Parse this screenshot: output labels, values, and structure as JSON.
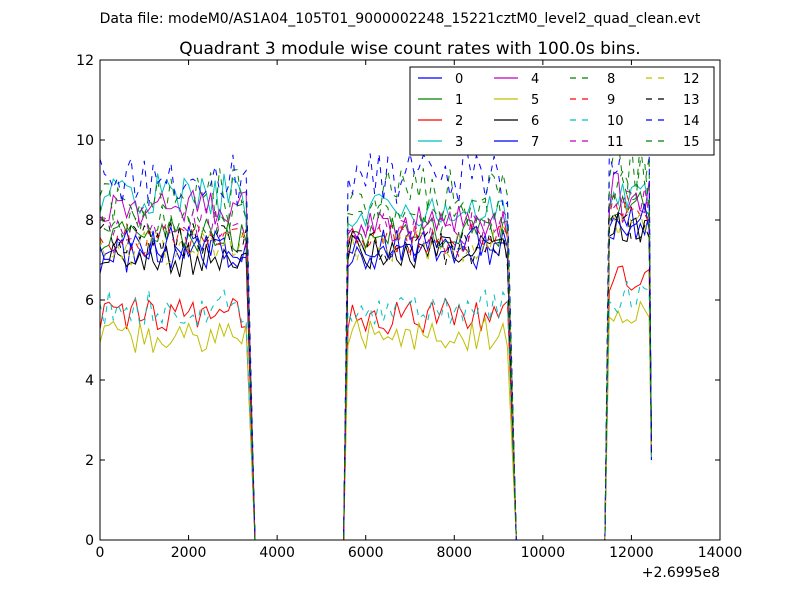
{
  "suptitle": "Data file: modeM0/AS1A04_105T01_9000002248_15221cztM0_level2_quad_clean.evt",
  "chart_data": {
    "type": "line",
    "title": "Quadrant 3 module wise count rates with 100.0s bins.",
    "xlabel": "",
    "ylabel": "",
    "x_offset_label": "+2.6995e8",
    "xlim": [
      0,
      14000
    ],
    "ylim": [
      0,
      12
    ],
    "xticks": [
      0,
      2000,
      4000,
      6000,
      8000,
      10000,
      12000,
      14000
    ],
    "xtick_labels": [
      "0",
      "2000",
      "4000",
      "6000",
      "8000",
      "10000",
      "12000",
      "14000"
    ],
    "yticks": [
      0,
      2,
      4,
      6,
      8,
      10,
      12
    ],
    "ytick_labels": [
      "0",
      "2",
      "4",
      "6",
      "8",
      "10",
      "12"
    ],
    "legend_position": "top-right",
    "legend_columns": 4,
    "bin_seconds": 100,
    "segments": [
      {
        "start": 0,
        "end": 3300,
        "drop_to_zero": 3500
      },
      {
        "start": 5600,
        "end": 9200,
        "drop_to_zero": 9400
      },
      {
        "start": 11500,
        "end": 12400
      }
    ],
    "series": [
      {
        "name": "0",
        "color": "#0000ff",
        "dash": "solid",
        "level_seg1": 7.1,
        "level_seg2": 7.2,
        "level_seg3": 7.9
      },
      {
        "name": "1",
        "color": "#008000",
        "dash": "solid",
        "level_seg1": 7.6,
        "level_seg2": 7.7,
        "level_seg3": 8.3
      },
      {
        "name": "2",
        "color": "#ff0000",
        "dash": "solid",
        "level_seg1": 5.6,
        "level_seg2": 5.6,
        "level_seg3": 6.5
      },
      {
        "name": "3",
        "color": "#00bfbf",
        "dash": "solid",
        "level_seg1": 8.6,
        "level_seg2": 8.2,
        "level_seg3": 8.5
      },
      {
        "name": "4",
        "color": "#bf00bf",
        "dash": "solid",
        "level_seg1": 8.3,
        "level_seg2": 7.9,
        "level_seg3": 8.6
      },
      {
        "name": "5",
        "color": "#bfbf00",
        "dash": "solid",
        "level_seg1": 5.1,
        "level_seg2": 5.1,
        "level_seg3": 5.8
      },
      {
        "name": "6",
        "color": "#000000",
        "dash": "solid",
        "level_seg1": 7.0,
        "level_seg2": 7.2,
        "level_seg3": 7.8
      },
      {
        "name": "7",
        "color": "#0000ff",
        "dash": "solid",
        "level_seg1": 7.4,
        "level_seg2": 7.4,
        "level_seg3": 8.0
      },
      {
        "name": "8",
        "color": "#008000",
        "dash": "dashed",
        "level_seg1": 8.6,
        "level_seg2": 8.6,
        "level_seg3": 9.3
      },
      {
        "name": "9",
        "color": "#ff0000",
        "dash": "dashed",
        "level_seg1": 7.5,
        "level_seg2": 7.5,
        "level_seg3": 8.2
      },
      {
        "name": "10",
        "color": "#00bfbf",
        "dash": "dashed",
        "level_seg1": 5.8,
        "level_seg2": 5.8,
        "level_seg3": 6.1
      },
      {
        "name": "11",
        "color": "#bf00bf",
        "dash": "dashed",
        "level_seg1": 7.9,
        "level_seg2": 7.8,
        "level_seg3": 8.4
      },
      {
        "name": "12",
        "color": "#bfbf00",
        "dash": "dashed",
        "level_seg1": 7.3,
        "level_seg2": 7.4,
        "level_seg3": 8.0
      },
      {
        "name": "13",
        "color": "#000000",
        "dash": "dashed",
        "level_seg1": 7.5,
        "level_seg2": 7.3,
        "level_seg3": 7.9
      },
      {
        "name": "14",
        "color": "#0000ff",
        "dash": "dashed",
        "level_seg1": 9.0,
        "level_seg2": 9.0,
        "level_seg3": 9.8
      },
      {
        "name": "15",
        "color": "#008000",
        "dash": "dashed",
        "level_seg1": 8.0,
        "level_seg2": 8.1,
        "level_seg3": 8.8
      }
    ]
  }
}
